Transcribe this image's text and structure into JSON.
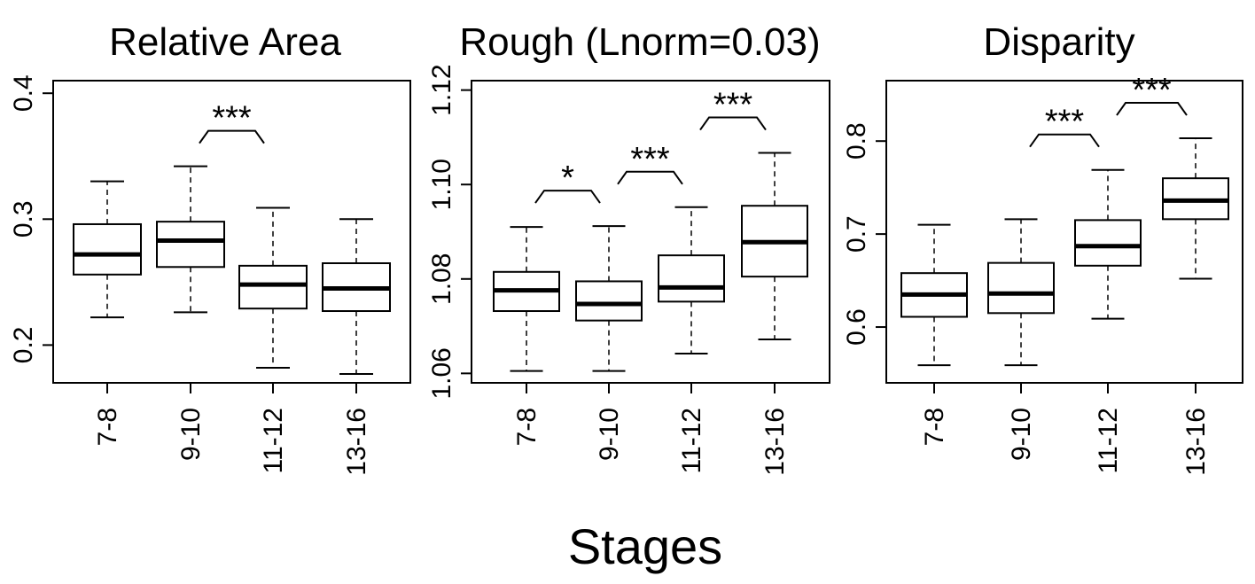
{
  "figure": {
    "xlabel": "Stages"
  },
  "chart_data": [
    {
      "type": "box",
      "title": "Relative Area",
      "categories": [
        "7-8",
        "9-10",
        "11-12",
        "13-16"
      ],
      "ylim": [
        0.17,
        0.41
      ],
      "yticks": [
        0.2,
        0.3,
        0.4
      ],
      "ytick_labels": [
        "0.2",
        "0.3",
        "0.4"
      ],
      "boxes": [
        {
          "whisker_low": 0.222,
          "q1": 0.256,
          "median": 0.272,
          "q3": 0.296,
          "whisker_high": 0.33
        },
        {
          "whisker_low": 0.226,
          "q1": 0.262,
          "median": 0.283,
          "q3": 0.298,
          "whisker_high": 0.342
        },
        {
          "whisker_low": 0.182,
          "q1": 0.229,
          "median": 0.248,
          "q3": 0.263,
          "whisker_high": 0.309
        },
        {
          "whisker_low": 0.177,
          "q1": 0.227,
          "median": 0.245,
          "q3": 0.265,
          "whisker_high": 0.3
        }
      ],
      "significance": [
        {
          "from": 1,
          "to": 2,
          "label": "***"
        }
      ]
    },
    {
      "type": "box",
      "title": "Rough (Lnorm=0.03)",
      "categories": [
        "7-8",
        "9-10",
        "11-12",
        "13-16"
      ],
      "ylim": [
        1.058,
        1.122
      ],
      "yticks": [
        1.06,
        1.08,
        1.1,
        1.12
      ],
      "ytick_labels": [
        "1.06",
        "1.08",
        "1.10",
        "1.12"
      ],
      "boxes": [
        {
          "whisker_low": 1.0605,
          "q1": 1.0732,
          "median": 1.0776,
          "q3": 1.0815,
          "whisker_high": 1.091
        },
        {
          "whisker_low": 1.0605,
          "q1": 1.0712,
          "median": 1.0747,
          "q3": 1.0795,
          "whisker_high": 1.0912
        },
        {
          "whisker_low": 1.0642,
          "q1": 1.0752,
          "median": 1.0782,
          "q3": 1.085,
          "whisker_high": 1.0952
        },
        {
          "whisker_low": 1.0672,
          "q1": 1.0805,
          "median": 1.0878,
          "q3": 1.0955,
          "whisker_high": 1.1067
        }
      ],
      "significance": [
        {
          "from": 0,
          "to": 1,
          "label": "*"
        },
        {
          "from": 1,
          "to": 2,
          "label": "***"
        },
        {
          "from": 2,
          "to": 3,
          "label": "***"
        }
      ]
    },
    {
      "type": "box",
      "title": "Disparity",
      "categories": [
        "7-8",
        "9-10",
        "11-12",
        "13-16"
      ],
      "ylim": [
        0.54,
        0.865
      ],
      "yticks": [
        0.6,
        0.7,
        0.8
      ],
      "ytick_labels": [
        "0.6",
        "0.7",
        "0.8"
      ],
      "boxes": [
        {
          "whisker_low": 0.559,
          "q1": 0.611,
          "median": 0.635,
          "q3": 0.658,
          "whisker_high": 0.71
        },
        {
          "whisker_low": 0.559,
          "q1": 0.615,
          "median": 0.636,
          "q3": 0.669,
          "whisker_high": 0.716
        },
        {
          "whisker_low": 0.609,
          "q1": 0.666,
          "median": 0.687,
          "q3": 0.715,
          "whisker_high": 0.769
        },
        {
          "whisker_low": 0.652,
          "q1": 0.716,
          "median": 0.736,
          "q3": 0.76,
          "whisker_high": 0.803
        }
      ],
      "significance": [
        {
          "from": 1,
          "to": 2,
          "label": "***"
        },
        {
          "from": 2,
          "to": 3,
          "label": "***"
        }
      ]
    }
  ]
}
